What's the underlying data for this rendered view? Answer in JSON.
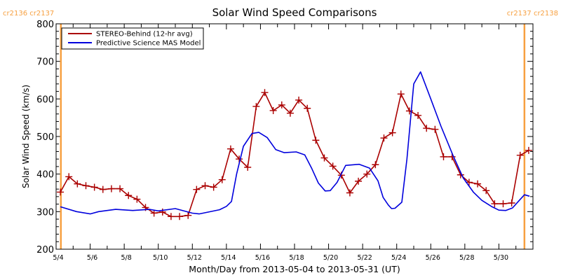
{
  "chart_data": {
    "type": "line",
    "title": "Solar Wind Speed Comparisons",
    "xlabel": "Month/Day from 2013-05-04 to 2013-05-31 (UT)",
    "ylabel": "Solar Wind Speed (km/s)",
    "xlim_days": [
      0,
      28
    ],
    "ylim": [
      200,
      800
    ],
    "yticks": [
      200,
      300,
      400,
      500,
      600,
      700,
      800
    ],
    "y_minor_step": 20,
    "x_tick_days": [
      0,
      2,
      4,
      6,
      8,
      10,
      12,
      14,
      16,
      18,
      20,
      22,
      24,
      26
    ],
    "x_tick_labels": [
      "5/4",
      "5/6",
      "5/8",
      "5/10",
      "5/12",
      "5/14",
      "5/16",
      "5/18",
      "5/20",
      "5/22",
      "5/24",
      "5/26",
      "5/28",
      "5/30"
    ],
    "x_minor_step_days": 1,
    "legend_position": "top-left",
    "carrington_markers": [
      {
        "day": 0.28,
        "label": "cr2136 cr2137",
        "color": "#f7a040"
      },
      {
        "day": 27.5,
        "label": "cr2137 cr2138",
        "color": "#f7a040"
      }
    ],
    "series": [
      {
        "name": "STEREO-Behind (12-hr avg)",
        "color": "#aa0000",
        "marker": "plus",
        "x_days": [
          0.25,
          0.75,
          1.25,
          1.75,
          2.25,
          2.75,
          3.25,
          3.75,
          4.25,
          4.75,
          5.25,
          5.75,
          6.25,
          6.75,
          7.25,
          7.75,
          8.25,
          8.75,
          9.25,
          9.75,
          10.25,
          10.75,
          11.25,
          11.75,
          12.25,
          12.75,
          13.25,
          13.75,
          14.25,
          14.75,
          15.25,
          15.75,
          16.25,
          16.75,
          17.25,
          17.75,
          18.25,
          18.75,
          19.25,
          19.75,
          20.25,
          20.75,
          21.25,
          21.75,
          22.25,
          22.75,
          23.25,
          23.75,
          24.25,
          24.75,
          25.25,
          25.75,
          26.25,
          26.75,
          27.25,
          27.75
        ],
        "values": [
          352,
          393,
          374,
          369,
          365,
          359,
          361,
          361,
          343,
          333,
          311,
          296,
          299,
          287,
          287,
          290,
          359,
          369,
          365,
          385,
          467,
          440,
          418,
          580,
          617,
          569,
          584,
          562,
          597,
          575,
          490,
          443,
          421,
          397,
          350,
          381,
          400,
          425,
          496,
          510,
          613,
          568,
          556,
          522,
          519,
          446,
          446,
          398,
          378,
          374,
          356,
          321,
          321,
          323,
          450,
          463
        ]
      },
      {
        "name": "Predictive Science MAS Model",
        "color": "#0000dd",
        "marker": "none",
        "x_days": [
          0.25,
          1.2,
          2.0,
          2.5,
          3.5,
          4.5,
          5.5,
          6.0,
          7.0,
          8.0,
          8.4,
          9.6,
          10.0,
          10.3,
          10.6,
          11.0,
          11.5,
          11.9,
          12.4,
          12.9,
          13.4,
          14.1,
          14.6,
          15.0,
          15.4,
          15.8,
          16.1,
          16.5,
          17.0,
          17.8,
          18.4,
          18.9,
          19.2,
          19.5,
          19.7,
          19.9,
          20.3,
          20.6,
          21.0,
          21.4,
          22.0,
          22.6,
          23.3,
          23.9,
          24.5,
          25.0,
          25.6,
          26.0,
          26.4,
          26.8,
          27.2,
          27.5,
          27.8
        ],
        "values": [
          313,
          300,
          294,
          300,
          306,
          303,
          306,
          302,
          308,
          296,
          294,
          305,
          314,
          327,
          400,
          474,
          508,
          511,
          497,
          465,
          457,
          459,
          451,
          416,
          376,
          355,
          356,
          378,
          423,
          426,
          416,
          382,
          338,
          318,
          308,
          309,
          325,
          440,
          640,
          672,
          600,
          527,
          450,
          390,
          352,
          330,
          313,
          304,
          303,
          310,
          330,
          345,
          341
        ]
      }
    ]
  }
}
